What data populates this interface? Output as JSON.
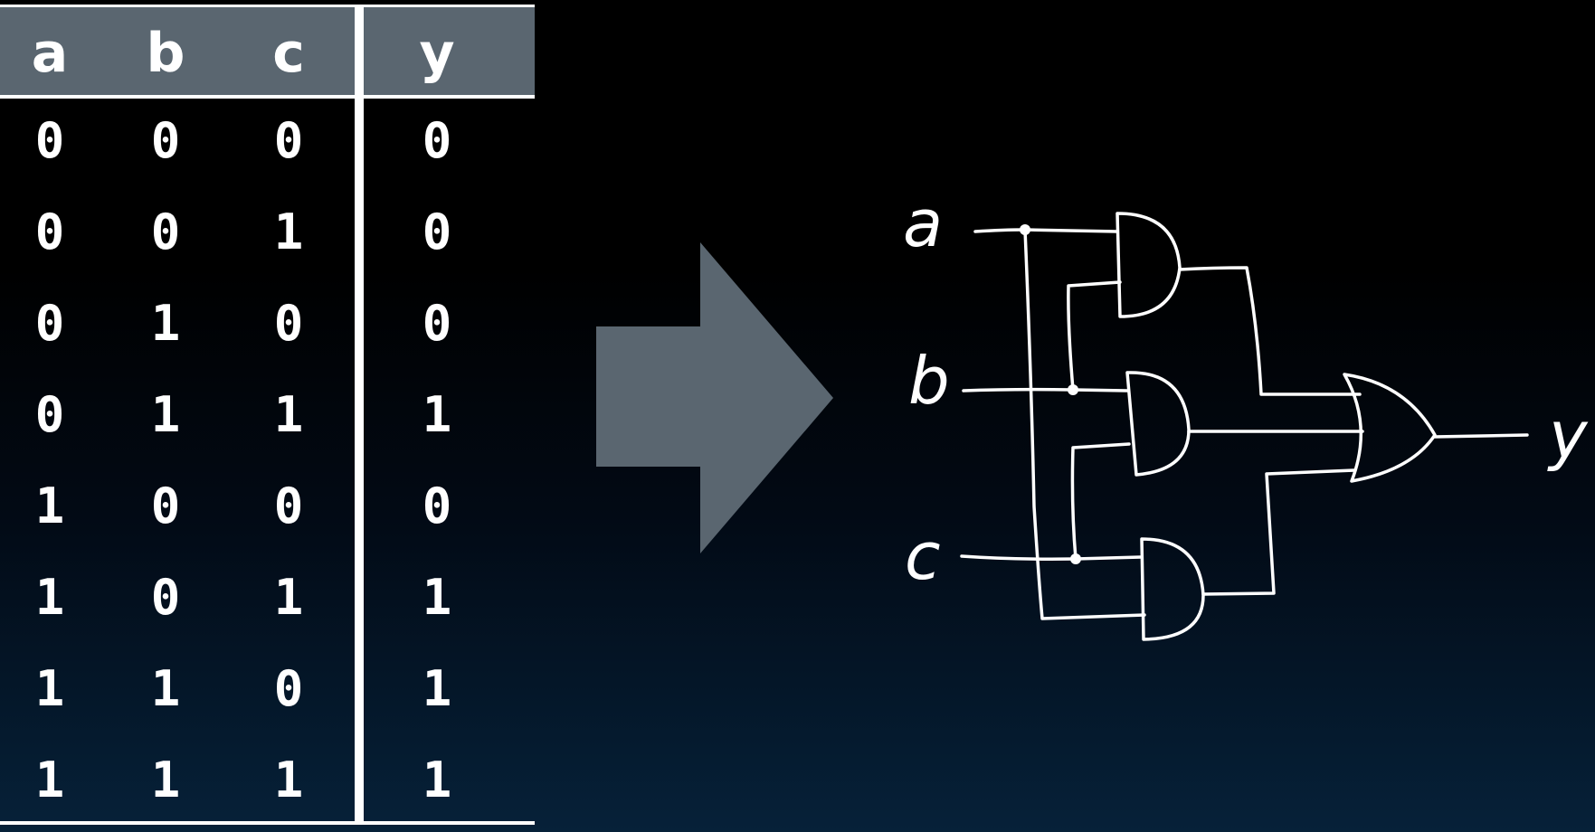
{
  "truth_table": {
    "inputs": [
      "a",
      "b",
      "c"
    ],
    "output": "y",
    "rows": [
      {
        "a": "0",
        "b": "0",
        "c": "0",
        "y": "0"
      },
      {
        "a": "0",
        "b": "0",
        "c": "1",
        "y": "0"
      },
      {
        "a": "0",
        "b": "1",
        "c": "0",
        "y": "0"
      },
      {
        "a": "0",
        "b": "1",
        "c": "1",
        "y": "1"
      },
      {
        "a": "1",
        "b": "0",
        "c": "0",
        "y": "0"
      },
      {
        "a": "1",
        "b": "0",
        "c": "1",
        "y": "1"
      },
      {
        "a": "1",
        "b": "1",
        "c": "0",
        "y": "1"
      },
      {
        "a": "1",
        "b": "1",
        "c": "1",
        "y": "1"
      }
    ]
  },
  "circuit": {
    "input_labels": [
      "a",
      "b",
      "c"
    ],
    "output_label": "y",
    "gates": [
      {
        "type": "AND",
        "inputs": [
          "a",
          "b"
        ]
      },
      {
        "type": "AND",
        "inputs": [
          "b",
          "c"
        ]
      },
      {
        "type": "AND",
        "inputs": [
          "c",
          "a"
        ]
      },
      {
        "type": "OR",
        "inputs": [
          "AND1",
          "AND2",
          "AND3"
        ]
      }
    ]
  },
  "colors": {
    "header_fill": "#5a6670",
    "arrow_fill": "#5a6670",
    "ink": "#ffffff"
  }
}
